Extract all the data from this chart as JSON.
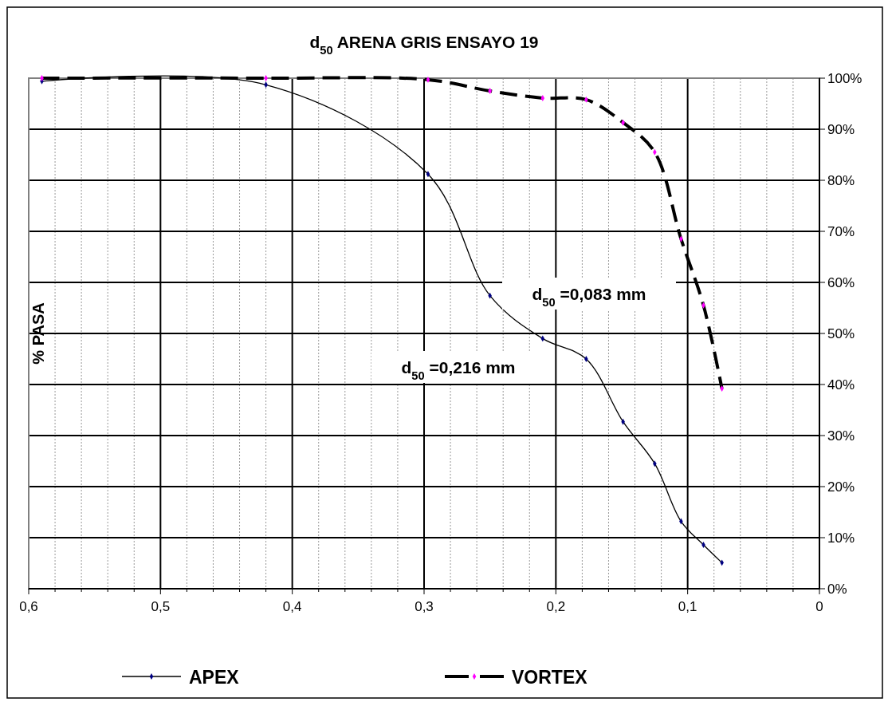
{
  "chart_data": {
    "type": "line",
    "title": "d$_{50}$ ARENA GRIS ENSAYO 19",
    "ylabel": "% PASA",
    "annotations": [
      "d$_{50}$ =0,083 mm",
      "d$_{50}$ =0,216 mm"
    ],
    "x": [
      0.59,
      0.42,
      0.297,
      0.25,
      0.21,
      0.177,
      0.149,
      0.125,
      0.105,
      0.088,
      0.074
    ],
    "series": [
      {
        "name": "APEX",
        "color": "#000080",
        "line_style": "solid",
        "values": [
          99.4,
          98.7,
          81.2,
          57.4,
          49.0,
          45.0,
          32.7,
          24.5,
          13.2,
          8.6,
          5.1
        ]
      },
      {
        "name": "VORTEX",
        "color": "#ff00ff",
        "line_style": "dashed",
        "values": [
          100,
          100,
          99.7,
          97.5,
          96.1,
          95.8,
          91.3,
          85.5,
          68.5,
          55.5,
          39.2
        ]
      }
    ],
    "xlim": [
      0.6,
      0
    ],
    "xticks": [
      {
        "value": 0.6,
        "label": "0,6"
      },
      {
        "value": 0.58,
        "label": null
      },
      {
        "value": 0.56,
        "label": null
      },
      {
        "value": 0.54,
        "label": null
      },
      {
        "value": 0.52,
        "label": null
      },
      {
        "value": 0.5,
        "label": "0,5"
      },
      {
        "value": 0.48,
        "label": null
      },
      {
        "value": 0.46,
        "label": null
      },
      {
        "value": 0.44,
        "label": null
      },
      {
        "value": 0.42,
        "label": null
      },
      {
        "value": 0.4,
        "label": "0,4"
      },
      {
        "value": 0.38,
        "label": null
      },
      {
        "value": 0.36,
        "label": null
      },
      {
        "value": 0.34,
        "label": null
      },
      {
        "value": 0.32,
        "label": null
      },
      {
        "value": 0.3,
        "label": "0,3"
      },
      {
        "value": 0.28,
        "label": null
      },
      {
        "value": 0.26,
        "label": null
      },
      {
        "value": 0.24,
        "label": null
      },
      {
        "value": 0.22,
        "label": null
      },
      {
        "value": 0.2,
        "label": "0,2"
      },
      {
        "value": 0.18,
        "label": null
      },
      {
        "value": 0.16,
        "label": null
      },
      {
        "value": 0.14,
        "label": null
      },
      {
        "value": 0.12,
        "label": null
      },
      {
        "value": 0.1,
        "label": "0,1"
      },
      {
        "value": 0.08,
        "label": null
      },
      {
        "value": 0.06,
        "label": null
      },
      {
        "value": 0.04,
        "label": null
      },
      {
        "value": 0.02,
        "label": null
      },
      0
    ],
    "ylim": [
      0,
      100
    ],
    "yticks": [
      {
        "value": 0,
        "label": "0%"
      },
      {
        "value": 10,
        "label": "10%"
      },
      {
        "value": 20,
        "label": "20%"
      },
      {
        "value": 30,
        "label": "30%"
      },
      {
        "value": 40,
        "label": "40%"
      },
      {
        "value": 50,
        "label": "50%"
      },
      {
        "value": 60,
        "label": "60%"
      },
      {
        "value": 70,
        "label": "70%"
      },
      {
        "value": 80,
        "label": "80%"
      },
      {
        "value": 90,
        "label": "90%"
      },
      {
        "value": 100,
        "label": "100%"
      }
    ],
    "grid": true,
    "legend": "bottom",
    "marker": "diamond"
  }
}
